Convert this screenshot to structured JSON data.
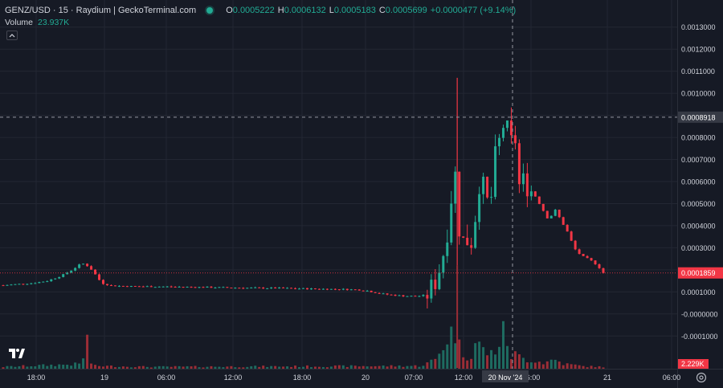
{
  "legend": {
    "title": "GENZ/USD · 15 · Raydium  |  GeckoTerminal.com",
    "open_key": "O",
    "open_val": "0.0005222",
    "high_key": "H",
    "high_val": "0.0006132",
    "low_key": "L",
    "low_val": "0.0005183",
    "close_key": "C",
    "close_val": "0.0005699",
    "change": "+0.0000477 (+9.14%)",
    "volume_label": "Volume",
    "volume_val": "23.937K"
  },
  "icons": {
    "status": "live-status-dot-icon",
    "collapse": "chevron-up-icon",
    "logo": "tradingview-logo-icon",
    "settings": "gear-icon"
  },
  "colors": {
    "background": "#161a25",
    "up": "#22ab94",
    "down": "#f23645",
    "volume_up": "#1e6b60",
    "volume_down": "#9c2d36",
    "grid": "#232733",
    "crosshair": "#9598a1",
    "axis_text": "#d1d4dc"
  },
  "chart_data": {
    "type": "candlestick",
    "pair": "GENZ/USD",
    "interval": "15",
    "y_range": [
      -0.00015,
      0.00135
    ],
    "y_ticks": [
      "0.0013000",
      "0.0012000",
      "0.0011000",
      "0.0010000",
      "0.0009000",
      "0.0008000",
      "0.0007000",
      "0.0006000",
      "0.0005000",
      "0.0004000",
      "0.0003000",
      "0.0002000",
      "0.0001000",
      "-0.0000000",
      "-0.0001000"
    ],
    "crosshair_price": "0.0008918",
    "last_price": "0.0001859",
    "volume_last": "2.229K",
    "x_ticks": [
      "18:00",
      "19",
      "06:00",
      "12:00",
      "18:00",
      "20",
      "07:00",
      "12:00",
      "16:00",
      "21",
      "06:00"
    ],
    "crosshair_time": "20 Nov '24",
    "price_path": [
      [
        0,
        0.00013
      ],
      [
        3,
        0.000135
      ],
      [
        6,
        0.00014
      ],
      [
        9,
        0.00015
      ],
      [
        12,
        0.000175
      ],
      [
        14,
        0.0002
      ],
      [
        16,
        0.00023
      ],
      [
        17,
        0.00022
      ],
      [
        18,
        0.0002
      ],
      [
        20,
        0.00014
      ],
      [
        22,
        0.000128
      ],
      [
        26,
        0.000125
      ],
      [
        32,
        0.000124
      ],
      [
        38,
        0.000122
      ],
      [
        44,
        0.00012
      ],
      [
        50,
        0.000118
      ],
      [
        56,
        0.000117
      ],
      [
        62,
        0.000114
      ],
      [
        68,
        0.000112
      ],
      [
        72,
        0.00011
      ],
      [
        74,
        0.000105
      ],
      [
        76,
        9.5e-05
      ],
      [
        78,
        8.8e-05
      ],
      [
        81,
        8.2e-05
      ],
      [
        84,
        8e-05
      ],
      [
        86,
        8.5e-05
      ],
      [
        87,
        0.00011
      ],
      [
        88,
        0.00016
      ],
      [
        89,
        0.00023
      ],
      [
        90,
        0.00033
      ],
      [
        91,
        0.00052
      ],
      [
        92,
        0.00064
      ],
      [
        93,
        0.0003
      ],
      [
        94,
        0.00035
      ],
      [
        95,
        0.00031
      ],
      [
        96,
        0.00045
      ],
      [
        97,
        0.00064
      ],
      [
        98,
        0.00052
      ],
      [
        99,
        0.00048
      ],
      [
        100,
        0.0007
      ],
      [
        101,
        0.00079
      ],
      [
        102,
        0.00089
      ],
      [
        103,
        0.00075
      ],
      [
        104,
        0.00082
      ],
      [
        105,
        0.00056
      ],
      [
        106,
        0.00061
      ],
      [
        107,
        0.00057
      ],
      [
        108,
        0.00054
      ],
      [
        109,
        0.0005
      ],
      [
        110,
        0.00046
      ],
      [
        111,
        0.00042
      ],
      [
        112,
        0.00048
      ],
      [
        113,
        0.00044
      ],
      [
        114,
        0.0004
      ],
      [
        115,
        0.00036
      ],
      [
        116,
        0.0003
      ],
      [
        117,
        0.000275
      ],
      [
        118,
        0.000258
      ],
      [
        119,
        0.000248
      ],
      [
        120,
        0.000235
      ],
      [
        121,
        0.000215
      ],
      [
        122,
        0.000186
      ]
    ],
    "volume_path": [
      [
        0,
        0.004
      ],
      [
        16,
        0.01
      ],
      [
        17,
        0.065
      ],
      [
        18,
        0.006
      ],
      [
        30,
        0.004
      ],
      [
        60,
        0.005
      ],
      [
        85,
        0.006
      ],
      [
        88,
        0.02
      ],
      [
        90,
        0.06
      ],
      [
        91,
        0.075
      ],
      [
        92,
        0.08
      ],
      [
        93,
        0.035
      ],
      [
        94,
        0.03
      ],
      [
        95,
        0.025
      ],
      [
        96,
        0.055
      ],
      [
        97,
        0.048
      ],
      [
        98,
        0.035
      ],
      [
        99,
        0.03
      ],
      [
        100,
        0.04
      ],
      [
        101,
        0.055
      ],
      [
        102,
        0.085
      ],
      [
        103,
        0.025
      ],
      [
        104,
        0.03
      ],
      [
        106,
        0.02
      ],
      [
        108,
        0.018
      ],
      [
        110,
        0.012
      ],
      [
        112,
        0.02
      ],
      [
        114,
        0.01
      ],
      [
        116,
        0.008
      ],
      [
        118,
        0.005
      ],
      [
        122,
        0.004
      ]
    ],
    "volume_range": [
      0,
      0.1
    ]
  }
}
